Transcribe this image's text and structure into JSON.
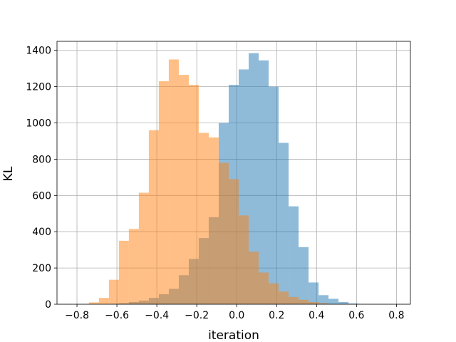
{
  "chart_data": {
    "type": "bar",
    "xlabel": "iteration",
    "ylabel": "KL",
    "xlim": [
      -0.9,
      0.87
    ],
    "ylim": [
      0,
      1450
    ],
    "xticks": [
      -0.8,
      -0.6,
      -0.4,
      -0.2,
      0.0,
      0.2,
      0.4,
      0.6,
      0.8
    ],
    "xtick_labels": [
      "−0.8",
      "−0.6",
      "−0.4",
      "−0.2",
      "0.0",
      "0.2",
      "0.4",
      "0.6",
      "0.8"
    ],
    "yticks": [
      0,
      200,
      400,
      600,
      800,
      1000,
      1200,
      1400
    ],
    "ytick_labels": [
      "0",
      "200",
      "400",
      "600",
      "800",
      "1000",
      "1200",
      "1400"
    ],
    "grid": true,
    "series": [
      {
        "color": "#1f77b4",
        "bins": [
          {
            "x0": -0.64,
            "x1": -0.59,
            "value": 2
          },
          {
            "x0": -0.59,
            "x1": -0.54,
            "value": 5
          },
          {
            "x0": -0.54,
            "x1": -0.49,
            "value": 12
          },
          {
            "x0": -0.49,
            "x1": -0.44,
            "value": 20
          },
          {
            "x0": -0.44,
            "x1": -0.39,
            "value": 35
          },
          {
            "x0": -0.39,
            "x1": -0.34,
            "value": 55
          },
          {
            "x0": -0.34,
            "x1": -0.29,
            "value": 85
          },
          {
            "x0": -0.29,
            "x1": -0.24,
            "value": 160
          },
          {
            "x0": -0.24,
            "x1": -0.19,
            "value": 250
          },
          {
            "x0": -0.19,
            "x1": -0.14,
            "value": 365
          },
          {
            "x0": -0.14,
            "x1": -0.09,
            "value": 480
          },
          {
            "x0": -0.09,
            "x1": -0.04,
            "value": 1000
          },
          {
            "x0": -0.04,
            "x1": 0.01,
            "value": 1210
          },
          {
            "x0": 0.01,
            "x1": 0.06,
            "value": 1295
          },
          {
            "x0": 0.06,
            "x1": 0.11,
            "value": 1385
          },
          {
            "x0": 0.11,
            "x1": 0.16,
            "value": 1345
          },
          {
            "x0": 0.16,
            "x1": 0.21,
            "value": 1200
          },
          {
            "x0": 0.21,
            "x1": 0.26,
            "value": 890
          },
          {
            "x0": 0.26,
            "x1": 0.31,
            "value": 540
          },
          {
            "x0": 0.31,
            "x1": 0.36,
            "value": 315
          },
          {
            "x0": 0.36,
            "x1": 0.41,
            "value": 120
          },
          {
            "x0": 0.41,
            "x1": 0.46,
            "value": 50
          },
          {
            "x0": 0.46,
            "x1": 0.51,
            "value": 30
          },
          {
            "x0": 0.51,
            "x1": 0.56,
            "value": 12
          },
          {
            "x0": 0.56,
            "x1": 0.61,
            "value": 4
          },
          {
            "x0": 0.61,
            "x1": 0.66,
            "value": 1
          }
        ]
      },
      {
        "color": "#ff7f0e",
        "bins": [
          {
            "x0": -0.74,
            "x1": -0.69,
            "value": 10
          },
          {
            "x0": -0.69,
            "x1": -0.64,
            "value": 35
          },
          {
            "x0": -0.64,
            "x1": -0.59,
            "value": 135
          },
          {
            "x0": -0.59,
            "x1": -0.54,
            "value": 350
          },
          {
            "x0": -0.54,
            "x1": -0.49,
            "value": 415
          },
          {
            "x0": -0.49,
            "x1": -0.44,
            "value": 615
          },
          {
            "x0": -0.44,
            "x1": -0.39,
            "value": 960
          },
          {
            "x0": -0.39,
            "x1": -0.34,
            "value": 1230
          },
          {
            "x0": -0.34,
            "x1": -0.29,
            "value": 1350
          },
          {
            "x0": -0.29,
            "x1": -0.24,
            "value": 1265
          },
          {
            "x0": -0.24,
            "x1": -0.19,
            "value": 1210
          },
          {
            "x0": -0.19,
            "x1": -0.14,
            "value": 945
          },
          {
            "x0": -0.14,
            "x1": -0.09,
            "value": 920
          },
          {
            "x0": -0.09,
            "x1": -0.04,
            "value": 780
          },
          {
            "x0": -0.04,
            "x1": 0.01,
            "value": 690
          },
          {
            "x0": 0.01,
            "x1": 0.06,
            "value": 490
          },
          {
            "x0": 0.06,
            "x1": 0.11,
            "value": 290
          },
          {
            "x0": 0.11,
            "x1": 0.16,
            "value": 175
          },
          {
            "x0": 0.16,
            "x1": 0.21,
            "value": 115
          },
          {
            "x0": 0.21,
            "x1": 0.26,
            "value": 70
          },
          {
            "x0": 0.26,
            "x1": 0.31,
            "value": 40
          },
          {
            "x0": 0.31,
            "x1": 0.36,
            "value": 25
          },
          {
            "x0": 0.36,
            "x1": 0.41,
            "value": 12
          },
          {
            "x0": 0.41,
            "x1": 0.46,
            "value": 6
          }
        ]
      }
    ]
  }
}
